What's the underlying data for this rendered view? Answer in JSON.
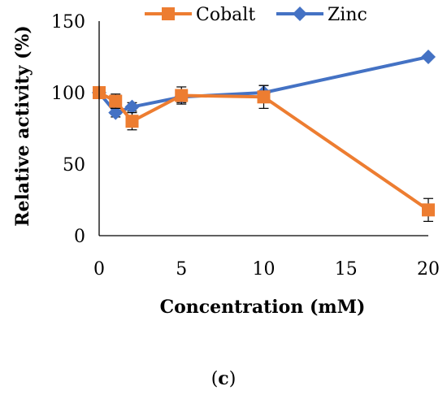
{
  "chart_data": {
    "type": "line",
    "x": [
      0,
      1,
      2,
      5,
      10,
      20
    ],
    "xlabel": "Concentration (mM)",
    "ylabel": "Relative activity (%)",
    "xlim": [
      0,
      20
    ],
    "ylim": [
      0,
      150
    ],
    "xticks": [
      "0",
      "5",
      "10",
      "15",
      "20"
    ],
    "yticks": [
      "0",
      "50",
      "100",
      "150"
    ],
    "grid": false,
    "legend_position": "top",
    "series": [
      {
        "name": "Cobalt",
        "color": "#ED7D31",
        "marker": "square",
        "values": [
          100,
          94,
          80,
          98,
          97,
          18
        ],
        "errors": [
          2,
          5,
          6,
          6,
          8,
          8
        ]
      },
      {
        "name": "Zinc",
        "color": "#4472C4",
        "marker": "diamond",
        "values": [
          100,
          86,
          90,
          97,
          100,
          125
        ],
        "errors": [
          2,
          3,
          3,
          4,
          5,
          1
        ]
      }
    ]
  },
  "caption": {
    "open": "(",
    "letter": "c",
    "close": ")"
  }
}
